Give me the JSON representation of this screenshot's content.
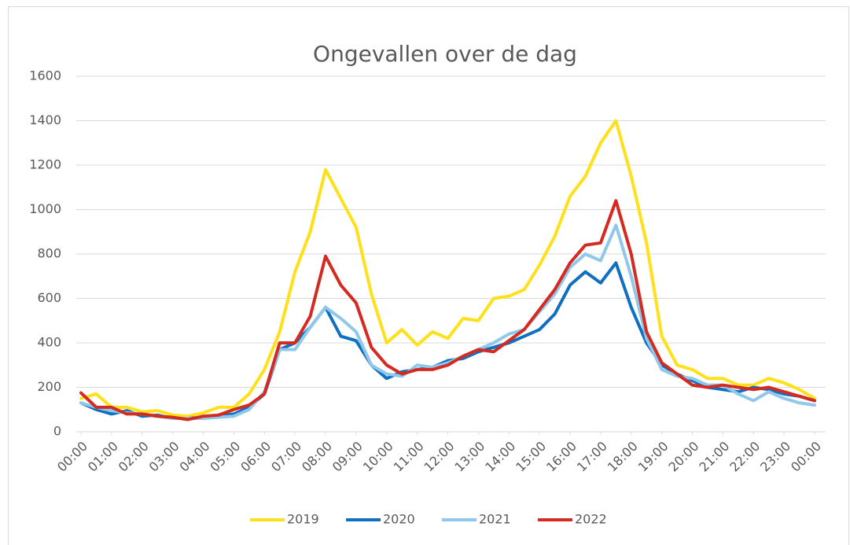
{
  "chart_data": {
    "type": "line",
    "title": "Ongevallen over de dag",
    "x": [
      0,
      0.5,
      1,
      1.5,
      2,
      2.5,
      3,
      3.5,
      4,
      4.5,
      5,
      5.5,
      6,
      6.5,
      7,
      7.5,
      8,
      8.5,
      9,
      9.5,
      10,
      10.5,
      11,
      11.5,
      12,
      12.5,
      13,
      13.5,
      14,
      14.5,
      15,
      15.5,
      16,
      16.5,
      17,
      17.5,
      18,
      18.5,
      19,
      19.5,
      20,
      20.5,
      21,
      21.5,
      22,
      22.5,
      23,
      23.5,
      24
    ],
    "series": [
      {
        "name": "2019",
        "color": "#ffe01a",
        "values": [
          150,
          170,
          110,
          110,
          90,
          95,
          75,
          70,
          85,
          110,
          110,
          170,
          280,
          450,
          720,
          900,
          1180,
          1050,
          920,
          620,
          400,
          460,
          390,
          450,
          420,
          510,
          500,
          600,
          610,
          640,
          750,
          880,
          1060,
          1150,
          1300,
          1400,
          1150,
          850,
          430,
          300,
          280,
          240,
          240,
          210,
          210,
          240,
          220,
          190,
          150
        ]
      },
      {
        "name": "2020",
        "color": "#0f6fc0",
        "values": [
          130,
          100,
          80,
          95,
          70,
          75,
          60,
          60,
          65,
          70,
          80,
          110,
          170,
          370,
          400,
          470,
          560,
          430,
          410,
          300,
          240,
          270,
          280,
          290,
          320,
          330,
          360,
          380,
          400,
          430,
          460,
          530,
          660,
          720,
          670,
          760,
          560,
          400,
          300,
          260,
          230,
          200,
          190,
          180,
          200,
          190,
          170,
          160,
          140
        ]
      },
      {
        "name": "2021",
        "color": "#8fc8ea",
        "values": [
          130,
          110,
          95,
          85,
          80,
          70,
          60,
          60,
          60,
          65,
          70,
          100,
          180,
          370,
          370,
          470,
          560,
          510,
          450,
          300,
          260,
          250,
          300,
          290,
          310,
          340,
          370,
          400,
          440,
          460,
          540,
          620,
          740,
          800,
          770,
          930,
          700,
          420,
          280,
          250,
          240,
          210,
          210,
          170,
          140,
          180,
          150,
          130,
          120
        ]
      },
      {
        "name": "2022",
        "color": "#d42a20",
        "values": [
          175,
          110,
          110,
          80,
          80,
          70,
          65,
          55,
          70,
          75,
          100,
          120,
          170,
          400,
          400,
          520,
          790,
          660,
          580,
          380,
          300,
          260,
          280,
          280,
          300,
          340,
          370,
          360,
          410,
          460,
          550,
          640,
          760,
          840,
          850,
          1040,
          800,
          450,
          310,
          260,
          210,
          200,
          210,
          200,
          190,
          200,
          180,
          160,
          140
        ]
      }
    ],
    "xlim": [
      0,
      24
    ],
    "xticks": [
      {
        "value": 0,
        "label": "00:00"
      },
      {
        "value": 1,
        "label": "01:00"
      },
      {
        "value": 2,
        "label": "02:00"
      },
      {
        "value": 3,
        "label": "03:00"
      },
      {
        "value": 4,
        "label": "04:00"
      },
      {
        "value": 5,
        "label": "05:00"
      },
      {
        "value": 6,
        "label": "06:00"
      },
      {
        "value": 7,
        "label": "07:00"
      },
      {
        "value": 8,
        "label": "08:00"
      },
      {
        "value": 9,
        "label": "09:00"
      },
      {
        "value": 10,
        "label": "10:00"
      },
      {
        "value": 11,
        "label": "11:00"
      },
      {
        "value": 12,
        "label": "12:00"
      },
      {
        "value": 13,
        "label": "13:00"
      },
      {
        "value": 14,
        "label": "14:00"
      },
      {
        "value": 15,
        "label": "15:00"
      },
      {
        "value": 16,
        "label": "16:00"
      },
      {
        "value": 17,
        "label": "17:00"
      },
      {
        "value": 18,
        "label": "18:00"
      },
      {
        "value": 19,
        "label": "19:00"
      },
      {
        "value": 20,
        "label": "20:00"
      },
      {
        "value": 21,
        "label": "21:00"
      },
      {
        "value": 22,
        "label": "22:00"
      },
      {
        "value": 23,
        "label": "23:00"
      },
      {
        "value": 24,
        "label": "00:00"
      }
    ],
    "ylim": [
      0,
      1600
    ],
    "yticks": [
      0,
      200,
      400,
      600,
      800,
      1000,
      1200,
      1400,
      1600
    ],
    "grid": true,
    "legend": "bottom"
  }
}
